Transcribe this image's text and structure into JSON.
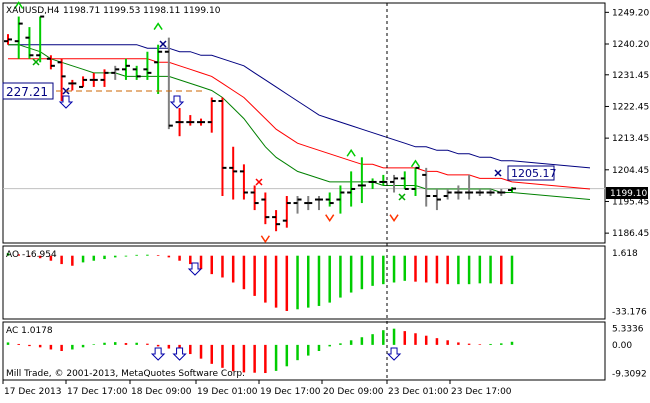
{
  "header": {
    "symbol_timeframe": "XAUUSD,H4",
    "ohlc": "1198.71 1199.53 1198.11 1199.10"
  },
  "panels": {
    "ao_label": "AO -16.954",
    "ac_label": "AC 1.0178",
    "copyright": "Mill Trade, © 2001-2013, MetaQuotes Software Corp."
  },
  "annotations": {
    "left_box": "227.21",
    "right_box": "1205.17",
    "current_price": "1199.10"
  },
  "colors": {
    "up": "#00cc00",
    "down": "#ff0000",
    "neutral": "#808080",
    "ma_fast": "#008000",
    "ma_mid": "#ff0000",
    "ma_slow": "#000080",
    "signal": "#0000aa"
  },
  "chart_data": [
    {
      "type": "ohlc",
      "title": "XAUUSD,H4",
      "y_ticks": [
        "1249.20",
        "1240.20",
        "1231.45",
        "1222.45",
        "1213.45",
        "1204.45",
        "1195.45",
        "1186.45"
      ],
      "ylim": [
        1184.5,
        1251.0
      ],
      "x_ticks": [
        "17 Dec 2013",
        "17 Dec 17:00",
        "18 Dec 09:00",
        "19 Dec 01:00",
        "19 Dec 17:00",
        "20 Dec 09:00",
        "23 Dec 01:00",
        "23 Dec 17:00"
      ],
      "bars": [
        {
          "o": 1241,
          "h": 1243,
          "l": 1240,
          "c": 1241.5,
          "col": "down"
        },
        {
          "o": 1241,
          "h": 1248,
          "l": 1236,
          "c": 1246,
          "col": "up"
        },
        {
          "o": 1242,
          "h": 1245,
          "l": 1236,
          "c": 1237,
          "col": "up"
        },
        {
          "o": 1237,
          "h": 1248,
          "l": 1235,
          "c": 1248,
          "col": "up"
        },
        {
          "o": 1236,
          "h": 1237,
          "l": 1233,
          "c": 1234,
          "col": "down"
        },
        {
          "o": 1235,
          "h": 1236,
          "l": 1224,
          "c": 1231,
          "col": "down"
        },
        {
          "o": 1229,
          "h": 1230,
          "l": 1227,
          "c": 1229,
          "col": "down"
        },
        {
          "o": 1228,
          "h": 1231,
          "l": 1228,
          "c": 1230,
          "col": "down"
        },
        {
          "o": 1230,
          "h": 1232,
          "l": 1228,
          "c": 1230,
          "col": "down"
        },
        {
          "o": 1230,
          "h": 1233,
          "l": 1228,
          "c": 1232,
          "col": "down"
        },
        {
          "o": 1232,
          "h": 1234,
          "l": 1230,
          "c": 1233,
          "col": "neutral"
        },
        {
          "o": 1233,
          "h": 1236,
          "l": 1230,
          "c": 1234,
          "col": "up"
        },
        {
          "o": 1233,
          "h": 1234,
          "l": 1230,
          "c": 1231,
          "col": "up"
        },
        {
          "o": 1233,
          "h": 1238,
          "l": 1230,
          "c": 1232,
          "col": "up"
        },
        {
          "o": 1235,
          "h": 1240,
          "l": 1226,
          "c": 1238,
          "col": "up"
        },
        {
          "o": 1238,
          "h": 1242,
          "l": 1216,
          "c": 1217,
          "col": "neutral"
        },
        {
          "o": 1218,
          "h": 1222,
          "l": 1214,
          "c": 1218,
          "col": "down"
        },
        {
          "o": 1218,
          "h": 1220,
          "l": 1217,
          "c": 1218,
          "col": "down"
        },
        {
          "o": 1218,
          "h": 1219,
          "l": 1217,
          "c": 1218,
          "col": "down"
        },
        {
          "o": 1218,
          "h": 1225,
          "l": 1215,
          "c": 1224,
          "col": "down"
        },
        {
          "o": 1224,
          "h": 1225,
          "l": 1197,
          "c": 1205,
          "col": "down"
        },
        {
          "o": 1205,
          "h": 1211,
          "l": 1196,
          "c": 1204,
          "col": "down"
        },
        {
          "o": 1204,
          "h": 1206,
          "l": 1196,
          "c": 1198,
          "col": "down"
        },
        {
          "o": 1198,
          "h": 1200,
          "l": 1193,
          "c": 1195,
          "col": "down"
        },
        {
          "o": 1196,
          "h": 1198,
          "l": 1189,
          "c": 1191,
          "col": "down"
        },
        {
          "o": 1191,
          "h": 1193,
          "l": 1187,
          "c": 1189,
          "col": "down"
        },
        {
          "o": 1190,
          "h": 1197,
          "l": 1188,
          "c": 1195,
          "col": "down"
        },
        {
          "o": 1195,
          "h": 1197,
          "l": 1192,
          "c": 1196,
          "col": "neutral"
        },
        {
          "o": 1195,
          "h": 1197,
          "l": 1193,
          "c": 1195,
          "col": "neutral"
        },
        {
          "o": 1196,
          "h": 1197,
          "l": 1193,
          "c": 1196,
          "col": "neutral"
        },
        {
          "o": 1196,
          "h": 1198,
          "l": 1194,
          "c": 1195,
          "col": "up"
        },
        {
          "o": 1196,
          "h": 1200,
          "l": 1192,
          "c": 1198,
          "col": "up"
        },
        {
          "o": 1198,
          "h": 1204,
          "l": 1194,
          "c": 1199,
          "col": "up"
        },
        {
          "o": 1200,
          "h": 1208,
          "l": 1195,
          "c": 1200,
          "col": "up"
        },
        {
          "o": 1201,
          "h": 1202,
          "l": 1199,
          "c": 1201,
          "col": "up"
        },
        {
          "o": 1201,
          "h": 1203,
          "l": 1200,
          "c": 1201,
          "col": "up"
        },
        {
          "o": 1201,
          "h": 1203,
          "l": 1198,
          "c": 1202,
          "col": "neutral"
        },
        {
          "o": 1202,
          "h": 1204,
          "l": 1199,
          "c": 1199,
          "col": "up"
        },
        {
          "o": 1199,
          "h": 1205,
          "l": 1197,
          "c": 1205,
          "col": "up"
        },
        {
          "o": 1203,
          "h": 1205,
          "l": 1194,
          "c": 1197,
          "col": "neutral"
        },
        {
          "o": 1197,
          "h": 1199,
          "l": 1193,
          "c": 1196,
          "col": "neutral"
        },
        {
          "o": 1197,
          "h": 1199,
          "l": 1196,
          "c": 1198,
          "col": "neutral"
        },
        {
          "o": 1198,
          "h": 1200,
          "l": 1196,
          "c": 1198,
          "col": "neutral"
        },
        {
          "o": 1198,
          "h": 1203,
          "l": 1196,
          "c": 1198,
          "col": "neutral"
        },
        {
          "o": 1198,
          "h": 1199,
          "l": 1197,
          "c": 1198,
          "col": "neutral"
        },
        {
          "o": 1198,
          "h": 1199,
          "l": 1197,
          "c": 1198,
          "col": "neutral"
        },
        {
          "o": 1198,
          "h": 1199,
          "l": 1197,
          "c": 1198,
          "col": "neutral"
        },
        {
          "o": 1198.7,
          "h": 1199.5,
          "l": 1198.1,
          "c": 1199.1,
          "col": "up"
        }
      ],
      "ma_fast": [
        1240,
        1240,
        1239,
        1238,
        1236,
        1235,
        1234,
        1233,
        1232,
        1232,
        1232,
        1231,
        1231,
        1231,
        1231,
        1231,
        1230,
        1229,
        1228,
        1227,
        1225,
        1222,
        1219,
        1215,
        1211,
        1208,
        1206,
        1204,
        1203,
        1202,
        1201,
        1201,
        1201,
        1201,
        1201,
        1200,
        1200,
        1200,
        1200,
        1199,
        1199,
        1199,
        1199,
        1199,
        1199,
        1199,
        1198,
        1198
      ],
      "ma_mid": [
        1236,
        1236,
        1236,
        1236,
        1236,
        1236,
        1236,
        1236,
        1236,
        1236,
        1236,
        1236,
        1236,
        1236,
        1235,
        1235,
        1234,
        1233,
        1232,
        1231,
        1229,
        1227,
        1225,
        1222,
        1219,
        1216,
        1214,
        1212,
        1211,
        1210,
        1209,
        1208,
        1207,
        1206,
        1206,
        1205,
        1205,
        1205,
        1205,
        1204,
        1204,
        1203,
        1203,
        1203,
        1202,
        1202,
        1202,
        1201
      ],
      "ma_slow": [
        1240,
        1240,
        1240,
        1240,
        1240,
        1240,
        1240,
        1240,
        1240,
        1240,
        1240,
        1240,
        1240,
        1239,
        1239,
        1239,
        1238,
        1238,
        1237,
        1237,
        1236,
        1235,
        1234,
        1232,
        1230,
        1228,
        1226,
        1224,
        1222,
        1220,
        1219,
        1218,
        1217,
        1216,
        1215,
        1214,
        1213,
        1212,
        1211,
        1211,
        1210,
        1210,
        1209,
        1209,
        1208,
        1208,
        1207,
        1207
      ],
      "up_arrows": [
        [
          1,
          1252
        ],
        [
          14,
          1246
        ],
        [
          32,
          1210
        ],
        [
          38,
          1207
        ]
      ],
      "down_arrows": [
        [
          24,
          1184
        ],
        [
          30,
          1190
        ],
        [
          36,
          1190
        ]
      ],
      "price_line": 1199.1
    },
    {
      "type": "bar",
      "title": "AO -16.954",
      "y_ticks": [
        "1.618",
        "-33.176"
      ],
      "ylim": [
        -36,
        4
      ],
      "values": [
        1.5,
        0.8,
        -0.5,
        -1.5,
        -3,
        -5,
        -6,
        -4,
        -3,
        -2,
        -1,
        -0.5,
        0.5,
        0.6,
        0.4,
        -1,
        -3,
        -5,
        -8,
        -11,
        -13,
        -16,
        -20,
        -24,
        -28,
        -31,
        -33,
        -32,
        -31,
        -30,
        -28,
        -25,
        -22,
        -20,
        -18,
        -17,
        -16,
        -15,
        -15.5,
        -16,
        -16.5,
        -17,
        -17,
        -17,
        -16.5,
        -16.5,
        -17,
        -16.954
      ],
      "colors": [
        "up",
        "down",
        "down",
        "down",
        "down",
        "down",
        "down",
        "up",
        "up",
        "up",
        "up",
        "up",
        "up",
        "up",
        "down",
        "down",
        "down",
        "down",
        "down",
        "down",
        "down",
        "down",
        "down",
        "down",
        "down",
        "down",
        "down",
        "up",
        "up",
        "up",
        "up",
        "up",
        "up",
        "up",
        "up",
        "up",
        "up",
        "up",
        "down",
        "down",
        "down",
        "down",
        "up",
        "up",
        "up",
        "up",
        "down",
        "up"
      ]
    },
    {
      "type": "bar",
      "title": "AC 1.0178",
      "y_ticks": [
        "5.3336",
        "0.00",
        "-9.3092"
      ],
      "ylim": [
        -10.5,
        6.5
      ],
      "values": [
        0.8,
        0.3,
        -0.4,
        -0.8,
        -1.5,
        -2,
        -1.5,
        -0.8,
        0.2,
        0.7,
        0.9,
        0.6,
        0.7,
        0.4,
        -0.5,
        -1.2,
        -2,
        -3,
        -4.5,
        -6.2,
        -7.5,
        -8.6,
        -9,
        -9.1,
        -9.2,
        -8.5,
        -7,
        -5,
        -3.5,
        -2,
        -0.5,
        0.5,
        1.5,
        2.5,
        3.5,
        4.8,
        5.3,
        4.5,
        3.8,
        3,
        2.2,
        1.5,
        0.8,
        0.4,
        0.2,
        0.3,
        0.5,
        1.0178
      ],
      "colors": [
        "up",
        "down",
        "down",
        "down",
        "down",
        "down",
        "up",
        "up",
        "up",
        "up",
        "up",
        "down",
        "up",
        "down",
        "down",
        "down",
        "down",
        "down",
        "down",
        "down",
        "down",
        "down",
        "down",
        "down",
        "down",
        "up",
        "up",
        "up",
        "up",
        "up",
        "up",
        "up",
        "up",
        "up",
        "up",
        "up",
        "up",
        "down",
        "down",
        "down",
        "down",
        "down",
        "down",
        "down",
        "down",
        "up",
        "up",
        "up"
      ],
      "down_arrows_idx": [
        14,
        16,
        36
      ]
    }
  ]
}
